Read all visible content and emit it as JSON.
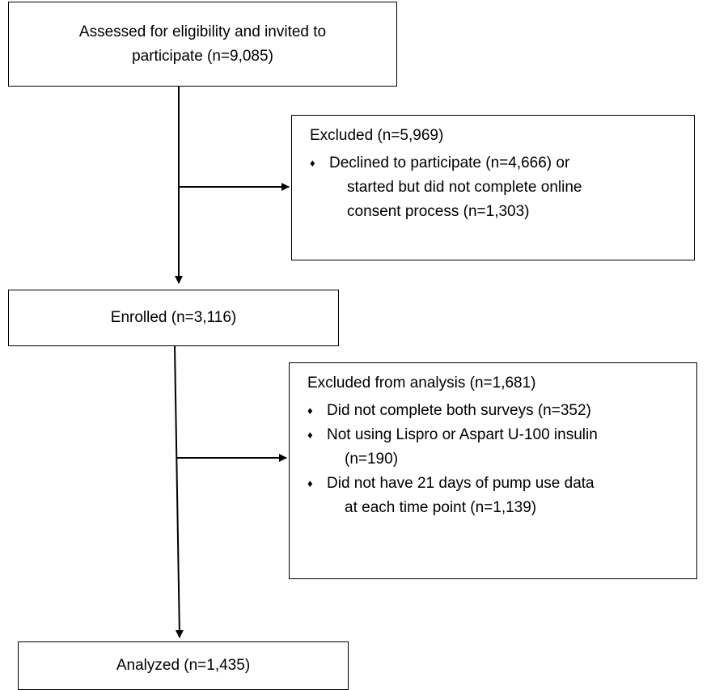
{
  "assessed": {
    "line1": "Assessed for eligibility and invited to",
    "line2": "participate (n=9,085)"
  },
  "excluded1": {
    "title": "Excluded (n=5,969)",
    "bullets": [
      {
        "line1": "Declined to participate (n=4,666) or",
        "line2": "started but did not complete online",
        "line3": "consent process (n=1,303)"
      }
    ]
  },
  "enrolled": {
    "label": "Enrolled (n=3,116)"
  },
  "excluded2": {
    "title": "Excluded from analysis (n=1,681)",
    "bullets": [
      {
        "line1": "Did not complete both surveys (n=352)"
      },
      {
        "line1": "Not using Lispro or Aspart U-100 insulin",
        "line2": "(n=190)"
      },
      {
        "line1": "Did not have 21 days of pump use data",
        "line2": "at each time point (n=1,139)"
      }
    ]
  },
  "analyzed": {
    "label": "Analyzed (n=1,435)"
  },
  "bullet_glyph": "♦"
}
